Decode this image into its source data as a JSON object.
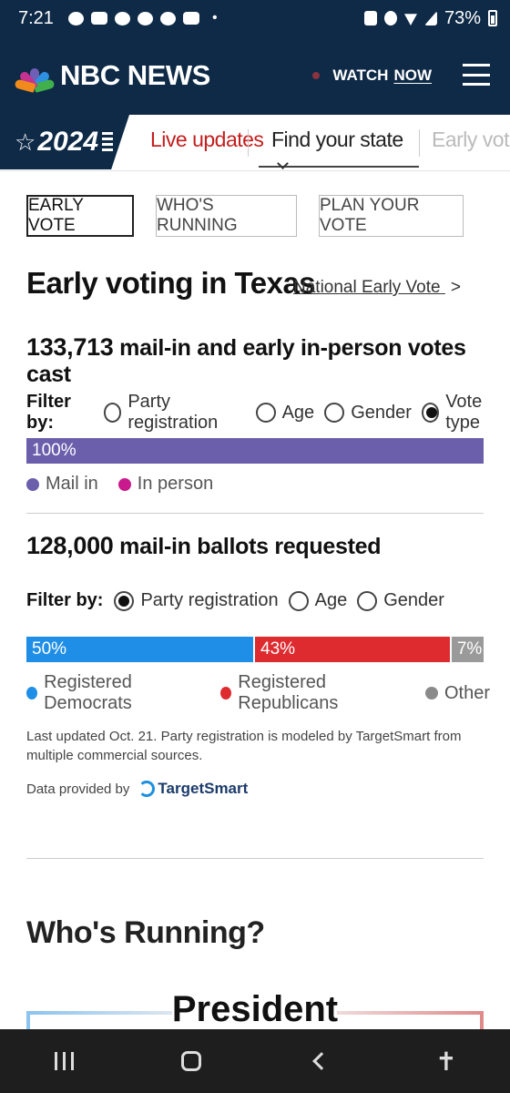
{
  "status_bar": {
    "time": "7:21",
    "battery": "73%"
  },
  "header": {
    "logo_text": "NBC NEWS",
    "watch_label": "WATCH",
    "watch_now": "NOW"
  },
  "nav": {
    "badge": "2024",
    "links": [
      "Live updates",
      "Find your state",
      "Early vot"
    ]
  },
  "tabs": [
    "EARLY VOTE",
    "WHO'S RUNNING",
    "PLAN YOUR VOTE"
  ],
  "main": {
    "title": "Early voting in Texas",
    "national_link": "National Early Vote",
    "votes_cast": {
      "count": "133,713",
      "label": "mail-in and early in-person votes cast",
      "filter_label": "Filter by:",
      "filters": [
        "Party registration",
        "Age",
        "Gender",
        "Vote type"
      ],
      "selected": "Vote type",
      "bar": [
        {
          "label": "100%",
          "value": 100,
          "color": "#6b5eab"
        }
      ],
      "legend": [
        {
          "label": "Mail in",
          "color": "#6b5eab"
        },
        {
          "label": "In person",
          "color": "#c81a8d"
        }
      ]
    },
    "ballots_requested": {
      "count": "128,000",
      "label": "mail-in ballots requested",
      "filter_label": "Filter by:",
      "filters": [
        "Party registration",
        "Age",
        "Gender"
      ],
      "selected": "Party registration",
      "bar": [
        {
          "label": "50%",
          "value": 50,
          "color": "#1f8ee6"
        },
        {
          "label": "43%",
          "value": 43,
          "color": "#de2b30"
        },
        {
          "label": "7%",
          "value": 7,
          "color": "#9a9a9a"
        }
      ],
      "legend": [
        {
          "label": "Registered Democrats",
          "color": "#1f8ee6"
        },
        {
          "label": "Registered Republicans",
          "color": "#de2b30"
        },
        {
          "label": "Other",
          "color": "#8a8a8a"
        }
      ]
    },
    "footnote": "Last updated Oct. 21. Party registration is modeled by TargetSmart from multiple commercial sources.",
    "provided_by": "Data provided by",
    "provider_name": "TargetSmart",
    "whos_running": "Who's Running?",
    "president": "President"
  }
}
